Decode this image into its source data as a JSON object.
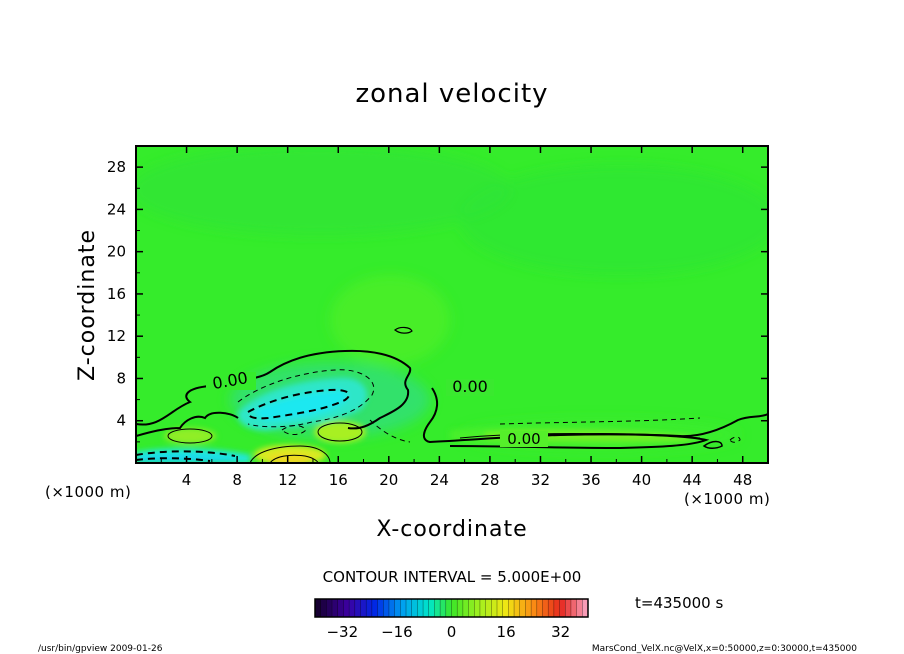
{
  "chart_data": {
    "type": "heatmap",
    "title": "zonal velocity",
    "xlabel": "X-coordinate",
    "ylabel": "Z-coordinate",
    "x_unit": "(×1000 m)",
    "y_unit": "(×1000 m)",
    "xlim": [
      0,
      50
    ],
    "ylim": [
      0,
      30
    ],
    "x_ticks": [
      "4",
      "8",
      "12",
      "16",
      "20",
      "24",
      "28",
      "32",
      "36",
      "40",
      "44",
      "48"
    ],
    "y_ticks": [
      "4",
      "8",
      "12",
      "16",
      "20",
      "24",
      "28"
    ],
    "contour_labels": [
      {
        "text": "0.00",
        "x": 7.8,
        "y": 7.6
      },
      {
        "text": "0.00",
        "x": 26.4,
        "y": 7.1
      },
      {
        "text": "0.00",
        "x": 30.0,
        "y": 2.1
      }
    ],
    "contour_interval": "CONTOUR INTERVAL = 5.000E+00",
    "colorbar": {
      "range": [
        -40,
        40
      ],
      "ticks": [
        "−32",
        "−16",
        "0",
        "16",
        "32"
      ],
      "tick_values": [
        -32,
        -16,
        0,
        16,
        32
      ]
    },
    "time_label": "t=435000 s",
    "footer_left": "/usr/bin/gpview   2009-01-26",
    "footer_right": "MarsCond_VelX.nc@VelX,x=0:50000,z=0:30000,t=435000",
    "colors": {
      "background_field": "#33ee2a",
      "negative_core": "#22eedd",
      "positive_core": "#e6e020"
    }
  }
}
